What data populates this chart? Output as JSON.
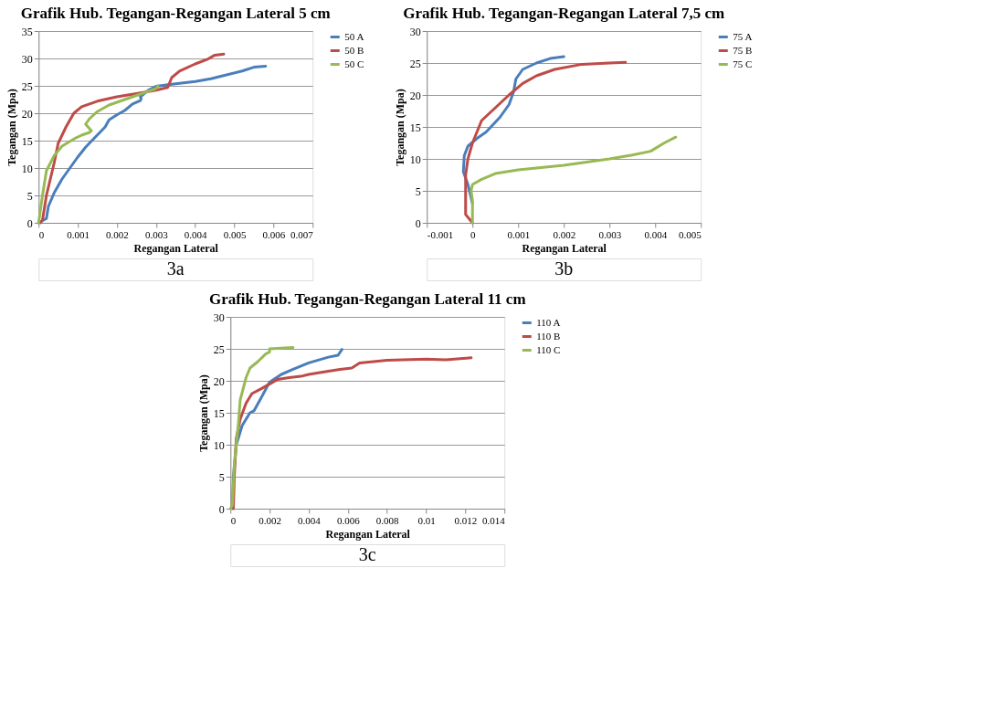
{
  "chart_data": [
    {
      "type": "line",
      "title": "Grafik Hub. Tegangan-Regangan Lateral 5 cm",
      "xlabel": "Regangan Lateral",
      "ylabel": "Tegangan (Mpa)",
      "xlim": [
        0,
        0.007
      ],
      "xticks": [
        0,
        0.001,
        0.002,
        0.003,
        0.004,
        0.005,
        0.006,
        0.007
      ],
      "ylim": [
        0,
        35
      ],
      "yticks": [
        0,
        5,
        10,
        15,
        20,
        25,
        30,
        35
      ],
      "grid": "y",
      "legend": "right",
      "marker": "none",
      "line_style": "solid",
      "annotations": [
        "3a"
      ],
      "series": [
        {
          "name": "50 A",
          "color": "#4a7ebb",
          "x": [
            0,
            0.0002,
            0.00025,
            0.0004,
            0.0006,
            0.0008,
            0.001,
            0.0012,
            0.0014,
            0.0017,
            0.0018,
            0.002,
            0.0022,
            0.0024,
            0.0026,
            0.00262,
            0.0026,
            0.0028,
            0.003,
            0.0034,
            0.004,
            0.0044,
            0.0048,
            0.0052,
            0.0055,
            0.0058
          ],
          "values": [
            0,
            0.8,
            3,
            5.5,
            8,
            10,
            12,
            13.8,
            15.3,
            17.5,
            18.8,
            19.7,
            20.5,
            21.7,
            22.3,
            22.7,
            23,
            24.2,
            24.9,
            25.3,
            25.8,
            26.3,
            27,
            27.7,
            28.4,
            28.6
          ]
        },
        {
          "name": "50 B",
          "color": "#be4b48",
          "x": [
            5e-05,
            0.0001,
            0.0002,
            0.0004,
            0.0005,
            0.0007,
            0.0009,
            0.0011,
            0.0015,
            0.002,
            0.0025,
            0.003,
            0.0033,
            0.0034,
            0.0036,
            0.004,
            0.0043,
            0.0045,
            0.00473
          ],
          "values": [
            0,
            0.5,
            5,
            11,
            14.5,
            17.5,
            20,
            21.2,
            22.2,
            23,
            23.6,
            24.2,
            24.7,
            26.5,
            27.7,
            29,
            29.8,
            30.6,
            30.8
          ]
        },
        {
          "name": "50 C",
          "color": "#98b954",
          "x": [
            0,
            0.0001,
            0.0002,
            0.0004,
            0.0006,
            0.0009,
            0.0011,
            0.0013,
            0.00135,
            0.0012,
            0.0013,
            0.0015,
            0.0018,
            0.0022,
            0.0026,
            0.003,
            0.00305
          ],
          "values": [
            0,
            5,
            9.5,
            12.3,
            14,
            15.3,
            16,
            16.5,
            16.8,
            18,
            19,
            20.3,
            21.5,
            22.5,
            23.5,
            24.5,
            25
          ]
        }
      ]
    },
    {
      "type": "line",
      "title": "Grafik Hub. Tegangan-Regangan Lateral 7,5 cm",
      "xlabel": "Regangan Lateral",
      "ylabel": "Tegangan (Mpa)",
      "xlim": [
        -0.001,
        0.005
      ],
      "xticks": [
        -0.001,
        0,
        0.001,
        0.002,
        0.003,
        0.004,
        0.005
      ],
      "ylim": [
        0,
        30
      ],
      "yticks": [
        0,
        5,
        10,
        15,
        20,
        25,
        30
      ],
      "grid": "y",
      "legend": "right",
      "marker": "none",
      "line_style": "solid",
      "annotations": [
        "3b"
      ],
      "series": [
        {
          "name": "75 A",
          "color": "#4a7ebb",
          "x": [
            0,
            -0.0001,
            -0.0002,
            -0.00018,
            -0.0001,
            0.0001,
            0.0003,
            0.0006,
            0.0008,
            0.0009,
            0.00095,
            0.0011,
            0.0014,
            0.0017,
            0.002
          ],
          "values": [
            3,
            6,
            8,
            10.5,
            12,
            13.2,
            14.2,
            16.5,
            18.5,
            20.5,
            22.5,
            24,
            25,
            25.7,
            26
          ]
        },
        {
          "name": "75 B",
          "color": "#be4b48",
          "x": [
            0,
            -0.00015,
            -0.00015,
            -0.0001,
            0,
            0.0002,
            0.0005,
            0.0008,
            0.0011,
            0.0014,
            0.0018,
            0.0024,
            0.003,
            0.00335
          ],
          "values": [
            0,
            1.3,
            7.5,
            10,
            12.5,
            16,
            18,
            20,
            21.8,
            23,
            24,
            24.8,
            25,
            25.1
          ]
        },
        {
          "name": "75 C",
          "color": "#98b954",
          "x": [
            0,
            0,
            -3e-05,
            0,
            0.0002,
            0.0005,
            0.001,
            0.002,
            0.003,
            0.0035,
            0.0039,
            0.0042,
            0.00445
          ],
          "values": [
            0,
            3.5,
            5,
            6,
            6.8,
            7.7,
            8.3,
            9,
            10,
            10.6,
            11.2,
            12.5,
            13.4
          ]
        }
      ]
    },
    {
      "type": "line",
      "title": "Grafik Hub. Tegangan-Regangan Lateral 11 cm",
      "xlabel": "Regangan Lateral",
      "ylabel": "Tegangan (Mpa)",
      "xlim": [
        0,
        0.014
      ],
      "xticks": [
        0,
        0.002,
        0.004,
        0.006,
        0.008,
        0.01,
        0.012,
        0.014
      ],
      "ylim": [
        0,
        30
      ],
      "yticks": [
        0,
        5,
        10,
        15,
        20,
        25,
        30
      ],
      "grid": "y",
      "legend": "right",
      "marker": "none",
      "line_style": "solid",
      "annotations": [
        "3c"
      ],
      "series": [
        {
          "name": "110 A",
          "color": "#4a7ebb",
          "x": [
            0.0001,
            0.00015,
            0.0003,
            0.0006,
            0.001,
            0.0012,
            0.0016,
            0.002,
            0.0026,
            0.0032,
            0.004,
            0.005,
            0.0055,
            0.0057
          ],
          "values": [
            0,
            5,
            10,
            13,
            15,
            15.3,
            17.5,
            19.8,
            21,
            21.8,
            22.8,
            23.7,
            24,
            24.9
          ]
        },
        {
          "name": "110 B",
          "color": "#be4b48",
          "x": [
            0.00015,
            0.0002,
            0.0003,
            0.0005,
            0.0008,
            0.0011,
            0.0016,
            0.0024,
            0.003,
            0.0036,
            0.004,
            0.005,
            0.0056,
            0.0062,
            0.0066,
            0.008,
            0.01,
            0.011,
            0.0123
          ],
          "values": [
            0,
            5,
            11,
            14,
            16.5,
            18,
            18.8,
            20.2,
            20.5,
            20.7,
            21,
            21.5,
            21.8,
            22,
            22.8,
            23.2,
            23.4,
            23.3,
            23.6
          ]
        },
        {
          "name": "110 C",
          "color": "#98b954",
          "x": [
            0,
            0.0001,
            0.0002,
            0.0004,
            0.0005,
            0.0008,
            0.001,
            0.0014,
            0.0018,
            0.002,
            0.002,
            0.0026,
            0.0032
          ],
          "values": [
            0,
            0.5,
            7,
            13,
            17,
            20.5,
            22,
            23,
            24.2,
            24.5,
            25,
            25.1,
            25.2
          ]
        }
      ]
    }
  ]
}
